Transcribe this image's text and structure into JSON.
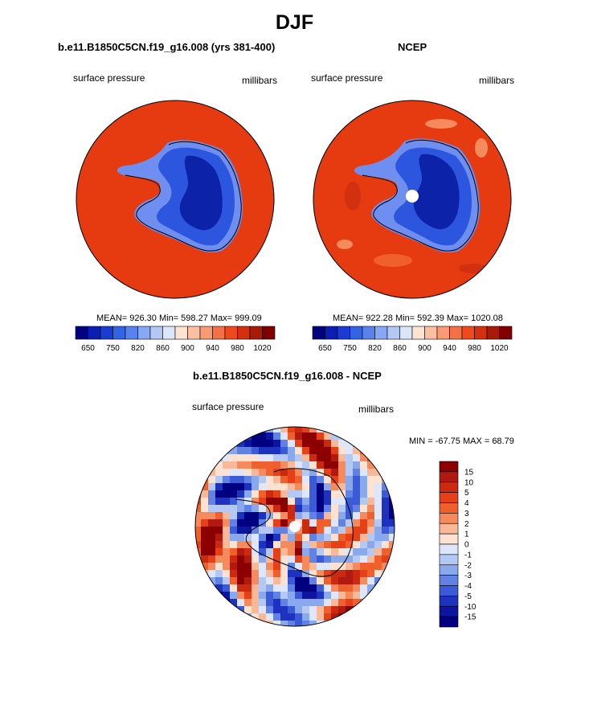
{
  "figure": {
    "title": "DJF"
  },
  "panels": [
    {
      "title": "b.e11.B1850C5CN.f19_g16.008 (yrs 381-400)",
      "left_label": "surface pressure",
      "right_label": "millibars",
      "stats": "MEAN= 926.30  Min= 598.27  Max= 999.09"
    },
    {
      "title": "NCEP",
      "left_label": "surface pressure",
      "right_label": "millibars",
      "stats": "MEAN= 922.28  Min= 592.39  Max= 1020.08"
    },
    {
      "title": "b.e11.B1850C5CN.f19_g16.008 - NCEP",
      "left_label": "surface pressure",
      "right_label": "millibars",
      "stats": "MIN = -67.75 MAX =  68.79"
    }
  ],
  "colorbar_abs": {
    "tick_labels": [
      "650",
      "750",
      "820",
      "860",
      "900",
      "940",
      "980",
      "1020"
    ],
    "colors": [
      "#000080",
      "#0a1eb4",
      "#1a3cd2",
      "#3264e6",
      "#5a82ee",
      "#87a8f2",
      "#b4c8f6",
      "#dce6fa",
      "#fde4d2",
      "#fbc0a2",
      "#f89a74",
      "#f47046",
      "#ee4a1e",
      "#d2300e",
      "#aa1a08",
      "#800000"
    ]
  },
  "colorbar_diff": {
    "tick_labels": [
      "15",
      "10",
      "5",
      "4",
      "3",
      "2",
      "1",
      "0",
      "-1",
      "-2",
      "-3",
      "-4",
      "-5",
      "-10",
      "-15"
    ],
    "colors": [
      "#8b0000",
      "#b01a10",
      "#cc2a10",
      "#e64018",
      "#f0602c",
      "#f58a5c",
      "#f9b898",
      "#fde2d2",
      "#dde6fa",
      "#b4c8f4",
      "#8aa8ec",
      "#5f82e4",
      "#3a5ad8",
      "#1e32c0",
      "#0c14a0",
      "#000080"
    ]
  },
  "chart_data": [
    {
      "type": "heatmap",
      "title": "b.e11.B1850C5CN.f19_g16.008 (yrs 381-400)",
      "variable": "surface pressure",
      "units": "millibars",
      "projection": "south polar stereographic",
      "mean": 926.3,
      "min": 598.27,
      "max": 999.09,
      "colorbar_ticks": [
        650,
        750,
        820,
        860,
        900,
        940,
        980,
        1020
      ]
    },
    {
      "type": "heatmap",
      "title": "NCEP",
      "variable": "surface pressure",
      "units": "millibars",
      "projection": "south polar stereographic",
      "mean": 922.28,
      "min": 592.39,
      "max": 1020.08,
      "colorbar_ticks": [
        650,
        750,
        820,
        860,
        900,
        940,
        980,
        1020
      ]
    },
    {
      "type": "heatmap",
      "title": "b.e11.B1850C5CN.f19_g16.008 - NCEP",
      "variable": "surface pressure",
      "units": "millibars",
      "projection": "south polar stereographic",
      "min": -67.75,
      "max": 68.79,
      "colorbar_ticks": [
        15,
        10,
        5,
        4,
        3,
        2,
        1,
        0,
        -1,
        -2,
        -3,
        -4,
        -5,
        -10,
        -15
      ]
    }
  ]
}
